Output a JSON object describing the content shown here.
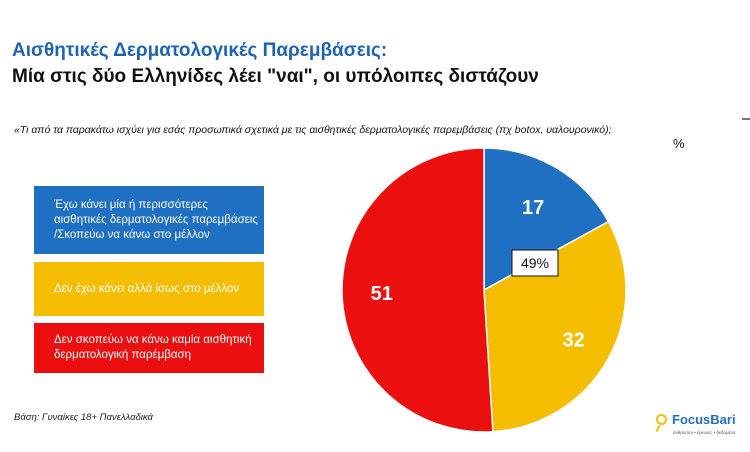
{
  "header": {
    "title_line1": "Αισθητικές Δερματολογικές Παρεμβάσεις:",
    "title_line2": "Μία στις δύο Ελληνίδες λέει \"ναι\", οι υπόλοιπες διστάζουν"
  },
  "question": "«Τι από τα παρακάτω ισχύει για εσάς προσωπικά σχετικά με τις αισθητικές δερματολογικές παρεμβάσεις (πχ botox, υαλουρονικό);",
  "unit": "%",
  "chart_data": {
    "type": "pie",
    "categories": [
      "Έχω κάνει μία ή περισσότερες αισθητικές δερματολογικές παρεμβάσεις /Σκοπεύω να κάνω στο μέλλον",
      "Δεν έχω κάνει αλλά ίσως στο μέλλον",
      "Δεν σκοπεύω να κάνω καμία αισθητική δερματολογική παρέμβαση"
    ],
    "values": [
      17,
      32,
      51
    ],
    "value_labels": [
      "17",
      "32",
      "51"
    ],
    "colors": [
      "#1f6fc2",
      "#f5bd00",
      "#ec0f10"
    ],
    "annotation": "49%",
    "legend_position": "left"
  },
  "footnote": "Βάση: Γυναίκες 18+ Πανελλαδικά",
  "logo": {
    "name": "FocusBari",
    "tagline": "άνθρωποι • έρευνες • δεδομένα"
  }
}
